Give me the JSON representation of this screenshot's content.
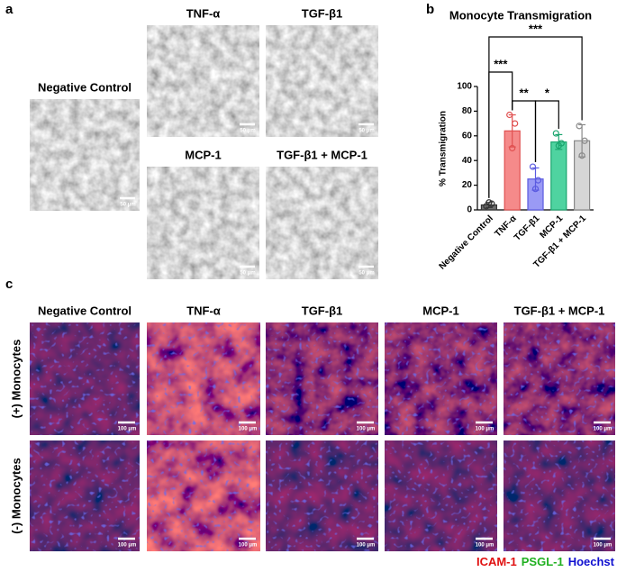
{
  "panel_a": {
    "letter": "a",
    "scale_bar": "50 μm",
    "images": [
      {
        "label": "Negative Control"
      },
      {
        "label": "TNF-α"
      },
      {
        "label": "TGF-β1"
      },
      {
        "label": "MCP-1"
      },
      {
        "label": "TGF-β1 + MCP-1"
      }
    ]
  },
  "panel_b": {
    "letter": "b"
  },
  "chart_data": {
    "type": "bar",
    "title": "Monocyte Transmigration",
    "y_label": "% Transmigration",
    "categories": [
      "Negative Control",
      "TNF-α",
      "TGF-β1",
      "MCP-1",
      "TGF-β1 + MCP-1"
    ],
    "values": [
      4,
      64,
      25,
      55,
      56
    ],
    "errors": [
      2,
      13,
      9,
      6,
      13
    ],
    "points": [
      [
        3,
        5,
        6
      ],
      [
        77,
        70,
        50
      ],
      [
        35,
        24,
        17
      ],
      [
        62,
        54,
        52
      ],
      [
        68,
        56,
        44
      ]
    ],
    "colors": [
      "#6e6e6e",
      "#f58a8a",
      "#9a9af5",
      "#4fd3a0",
      "#d6d6d6"
    ],
    "edge_colors": [
      "#333333",
      "#e05050",
      "#5a5ae0",
      "#1aa56e",
      "#8a8a8a"
    ],
    "ylim": [
      0,
      100
    ],
    "yticks": [
      0,
      20,
      40,
      60,
      80,
      100
    ],
    "significance": [
      {
        "label": "***",
        "from": "Negative Control",
        "to": "TGF-β1 + MCP-1"
      },
      {
        "label": "***",
        "from": "Negative Control",
        "to": "TNF-α"
      },
      {
        "label": "**",
        "from": "TNF-α",
        "to": "TGF-β1"
      },
      {
        "label": "*",
        "from": "TGF-β1",
        "to": "MCP-1"
      }
    ]
  },
  "panel_c": {
    "letter": "c",
    "scale_bar": "100 μm",
    "columns": [
      "Negative Control",
      "TNF-α",
      "TGF-β1",
      "MCP-1",
      "TGF-β1 + MCP-1"
    ],
    "rows": [
      "(+) Monocytes",
      "(-) Monocytes"
    ],
    "legend": [
      {
        "name": "ICAM-1",
        "color": "#e01010"
      },
      {
        "name": "PSGL-1",
        "color": "#20b020"
      },
      {
        "name": "Hoechst",
        "color": "#1010d0"
      }
    ]
  }
}
